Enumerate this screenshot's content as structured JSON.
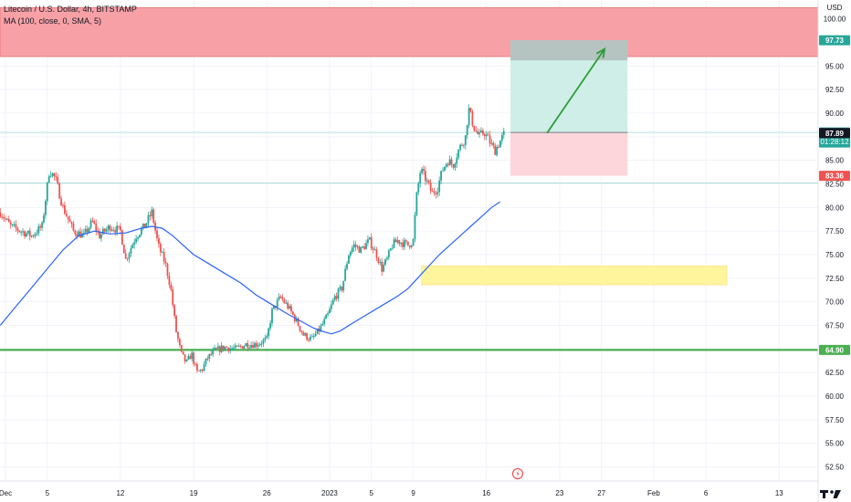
{
  "header": {
    "title": "Litecoin / U.S. Dollar, 4h, BITSTAMP",
    "indicator": "MA (100, close, 0, SMA, 5)"
  },
  "colors": {
    "up": "#26a69a",
    "down": "#ef5350",
    "ma": "#2962ff",
    "resistance_zone": "#f7a1a6",
    "support_line": "#4caf50",
    "yellow_zone": "#fff59d",
    "profit_zone": "#cfeee8",
    "loss_zone": "#fcd6da",
    "arrow": "#2e9b3a"
  },
  "chart_data": {
    "type": "candlestick",
    "y_axis": {
      "unit": "USD",
      "range": [
        51,
        102
      ],
      "ticks": [
        "52.50",
        "55.00",
        "57.50",
        "60.00",
        "62.50",
        "65.00",
        "67.50",
        "70.00",
        "72.50",
        "75.00",
        "77.50",
        "80.00",
        "82.50",
        "85.00",
        "87.50",
        "90.00",
        "92.50",
        "95.00",
        "97.50",
        "100.00"
      ]
    },
    "x_axis": {
      "ticks": [
        {
          "label": "Dec",
          "x": 0
        },
        {
          "label": "5",
          "x": 4
        },
        {
          "label": "12",
          "x": 11
        },
        {
          "label": "19",
          "x": 18
        },
        {
          "label": "26",
          "x": 25
        },
        {
          "label": "2023",
          "x": 31
        },
        {
          "label": "5",
          "x": 35
        },
        {
          "label": "9",
          "x": 39
        },
        {
          "label": "16",
          "x": 46
        },
        {
          "label": "23",
          "x": 53
        },
        {
          "label": "27",
          "x": 57
        },
        {
          "label": "Feb",
          "x": 62
        },
        {
          "label": "6",
          "x": 67
        },
        {
          "label": "13",
          "x": 74
        }
      ]
    },
    "price_labels": [
      {
        "value": "97.73",
        "color": "#26a69a"
      },
      {
        "value": "87.95",
        "extra": "01:28:12",
        "color": "#26a69a"
      },
      {
        "value": "87.89",
        "color": "#131722"
      },
      {
        "value": "83.36",
        "color": "#ef5350"
      },
      {
        "value": "64.90",
        "color": "#4caf50"
      }
    ],
    "close_path": [
      [
        -0.5,
        79.5
      ],
      [
        0.5,
        78.0
      ],
      [
        1.5,
        77.5
      ],
      [
        2.5,
        77.0
      ],
      [
        3.5,
        78.0
      ],
      [
        4.2,
        84.0
      ],
      [
        4.8,
        83.0
      ],
      [
        5.5,
        80.0
      ],
      [
        6.5,
        77.5
      ],
      [
        7.5,
        77.0
      ],
      [
        8.3,
        78.5
      ],
      [
        9.0,
        77.0
      ],
      [
        10.0,
        78.0
      ],
      [
        11.0,
        77.5
      ],
      [
        11.5,
        74.5
      ],
      [
        12.5,
        77.0
      ],
      [
        13.3,
        78.0
      ],
      [
        14.0,
        79.5
      ],
      [
        14.6,
        76.0
      ],
      [
        15.3,
        74.0
      ],
      [
        15.8,
        71.5
      ],
      [
        16.3,
        67.0
      ],
      [
        16.8,
        64.5
      ],
      [
        17.3,
        63.5
      ],
      [
        17.8,
        64.5
      ],
      [
        18.3,
        62.5
      ],
      [
        18.8,
        62.8
      ],
      [
        19.3,
        64.0
      ],
      [
        20.0,
        64.8
      ],
      [
        21.0,
        65.2
      ],
      [
        22.0,
        65.0
      ],
      [
        23.0,
        65.5
      ],
      [
        24.0,
        65.5
      ],
      [
        25.0,
        66.0
      ],
      [
        25.5,
        69.0
      ],
      [
        26.3,
        70.5
      ],
      [
        27.0,
        69.5
      ],
      [
        27.8,
        68.0
      ],
      [
        28.5,
        66.5
      ],
      [
        29.3,
        66.0
      ],
      [
        30.0,
        67.0
      ],
      [
        30.8,
        68.5
      ],
      [
        31.5,
        70.5
      ],
      [
        32.2,
        71.5
      ],
      [
        32.8,
        75.0
      ],
      [
        33.3,
        76.0
      ],
      [
        34.0,
        75.5
      ],
      [
        34.8,
        76.5
      ],
      [
        35.5,
        75.0
      ],
      [
        36.0,
        73.5
      ],
      [
        36.5,
        74.5
      ],
      [
        37.0,
        76.0
      ],
      [
        37.5,
        76.5
      ],
      [
        38.5,
        76.0
      ],
      [
        39.0,
        76.5
      ],
      [
        39.3,
        81.0
      ],
      [
        39.7,
        84.0
      ],
      [
        40.2,
        83.0
      ],
      [
        40.8,
        81.5
      ],
      [
        41.3,
        82.0
      ],
      [
        41.8,
        84.0
      ],
      [
        42.3,
        85.0
      ],
      [
        42.8,
        84.5
      ],
      [
        43.3,
        86.0
      ],
      [
        44.0,
        87.5
      ],
      [
        44.3,
        90.5
      ],
      [
        44.8,
        88.5
      ],
      [
        45.3,
        87.5
      ],
      [
        45.8,
        88.0
      ],
      [
        46.3,
        87.0
      ],
      [
        46.8,
        86.0
      ],
      [
        47.3,
        87.0
      ],
      [
        47.8,
        88.0
      ]
    ],
    "ma_path": [
      [
        -0.5,
        67.5
      ],
      [
        1,
        69.5
      ],
      [
        2.5,
        71.5
      ],
      [
        4,
        73.5
      ],
      [
        5.5,
        75.5
      ],
      [
        7,
        77.0
      ],
      [
        8.5,
        77.5
      ],
      [
        10,
        77.2
      ],
      [
        11.5,
        77.3
      ],
      [
        13,
        77.8
      ],
      [
        14,
        78.0
      ],
      [
        15,
        77.8
      ],
      [
        16,
        77.0
      ],
      [
        17,
        76.0
      ],
      [
        18,
        75.0
      ],
      [
        19.5,
        74.0
      ],
      [
        21,
        73.0
      ],
      [
        22.5,
        72.0
      ],
      [
        24,
        70.7
      ],
      [
        25.5,
        69.7
      ],
      [
        27,
        68.7
      ],
      [
        28.5,
        67.8
      ],
      [
        29.5,
        67.2
      ],
      [
        30.5,
        66.8
      ],
      [
        31.2,
        66.6
      ],
      [
        32,
        66.9
      ],
      [
        33,
        67.6
      ],
      [
        34.5,
        68.6
      ],
      [
        36,
        69.6
      ],
      [
        37.5,
        70.6
      ],
      [
        38.5,
        71.4
      ],
      [
        39.5,
        72.6
      ],
      [
        40.5,
        73.8
      ],
      [
        41.5,
        75.0
      ],
      [
        42.5,
        76.0
      ],
      [
        43.5,
        77.0
      ],
      [
        44.5,
        78.0
      ],
      [
        45.5,
        79.0
      ],
      [
        46.5,
        80.0
      ],
      [
        47.3,
        80.6
      ]
    ],
    "resistance_zone": {
      "y0": 96.0,
      "y1": 101.2
    },
    "support_line": {
      "y": 64.9
    },
    "yellow_zone": {
      "x0": 39.8,
      "x1": 69.0,
      "y0": 71.8,
      "y1": 73.8
    },
    "long_position": {
      "x0": 48.3,
      "x1": 59.5,
      "entry": 87.95,
      "target": 97.73,
      "stop": 83.36
    },
    "arrow": {
      "x0": 51.8,
      "y0": 87.9,
      "x1": 57.3,
      "y1": 96.8
    },
    "guide_lines": [
      87.95,
      82.6
    ]
  },
  "watermark": "TV"
}
